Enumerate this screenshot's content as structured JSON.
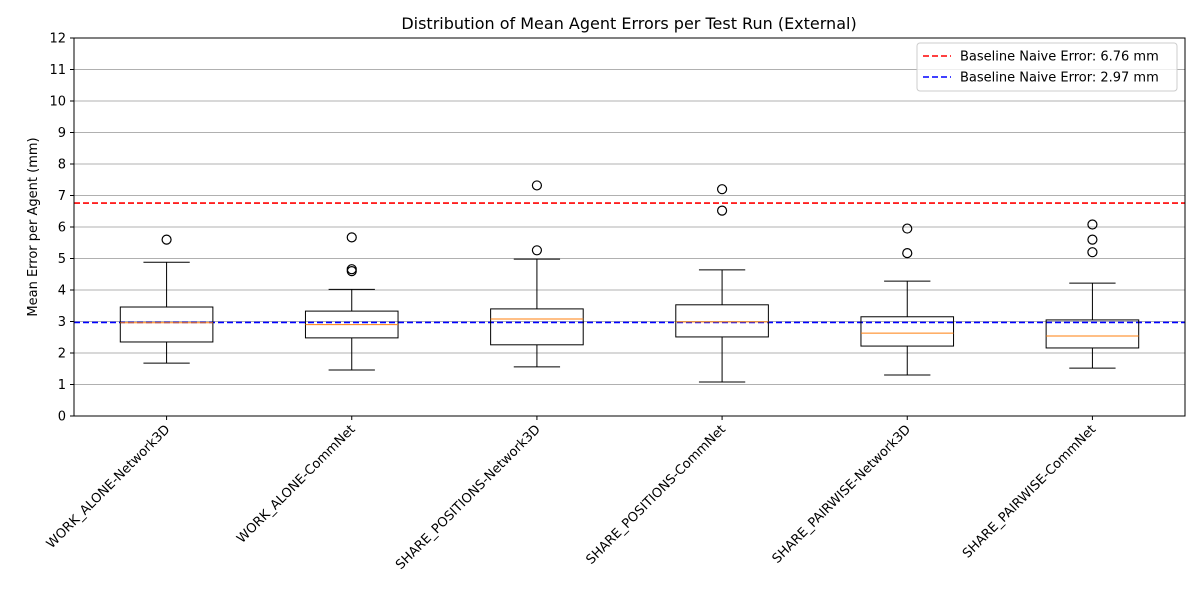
{
  "chart_data": {
    "type": "box",
    "title": "Distribution of Mean Agent Errors per Test Run (External)",
    "xlabel": "",
    "ylabel": "Mean Error per Agent (mm)",
    "ylim": [
      0,
      12
    ],
    "yticks": [
      0,
      1,
      2,
      3,
      4,
      5,
      6,
      7,
      8,
      9,
      10,
      11,
      12
    ],
    "grid": "y",
    "legend_position": "top-right",
    "categories": [
      "WORK_ALONE-Network3D",
      "WORK_ALONE-CommNet",
      "SHARE_POSITIONS-Network3D",
      "SHARE_POSITIONS-CommNet",
      "SHARE_PAIRWISE-Network3D",
      "SHARE_PAIRWISE-CommNet"
    ],
    "boxes": [
      {
        "whisker_low": 1.68,
        "q1": 2.35,
        "median": 2.96,
        "q3": 3.46,
        "whisker_high": 4.88,
        "outliers": [
          5.6
        ]
      },
      {
        "whisker_low": 1.46,
        "q1": 2.48,
        "median": 2.9,
        "q3": 3.33,
        "whisker_high": 4.02,
        "outliers": [
          4.6,
          4.66,
          5.67
        ]
      },
      {
        "whisker_low": 1.56,
        "q1": 2.26,
        "median": 3.08,
        "q3": 3.4,
        "whisker_high": 4.98,
        "outliers": [
          5.26,
          7.32
        ]
      },
      {
        "whisker_low": 1.08,
        "q1": 2.51,
        "median": 2.99,
        "q3": 3.53,
        "whisker_high": 4.64,
        "outliers": [
          6.52,
          7.2
        ]
      },
      {
        "whisker_low": 1.3,
        "q1": 2.22,
        "median": 2.63,
        "q3": 3.15,
        "whisker_high": 4.28,
        "outliers": [
          5.17,
          5.95
        ]
      },
      {
        "whisker_low": 1.52,
        "q1": 2.16,
        "median": 2.54,
        "q3": 3.05,
        "whisker_high": 4.22,
        "outliers": [
          5.2,
          5.6,
          6.08
        ]
      }
    ],
    "reference_lines": [
      {
        "label": "Baseline Naive Error: 6.76 mm",
        "value": 6.76,
        "color": "#ff0000",
        "style": "dashed"
      },
      {
        "label": "Baseline Naive Error: 2.97 mm",
        "value": 2.97,
        "color": "#0000ff",
        "style": "dashed"
      }
    ],
    "colors": {
      "box": "#000000",
      "median": "#ff7f0e",
      "grid": "#b0b0b0"
    }
  }
}
